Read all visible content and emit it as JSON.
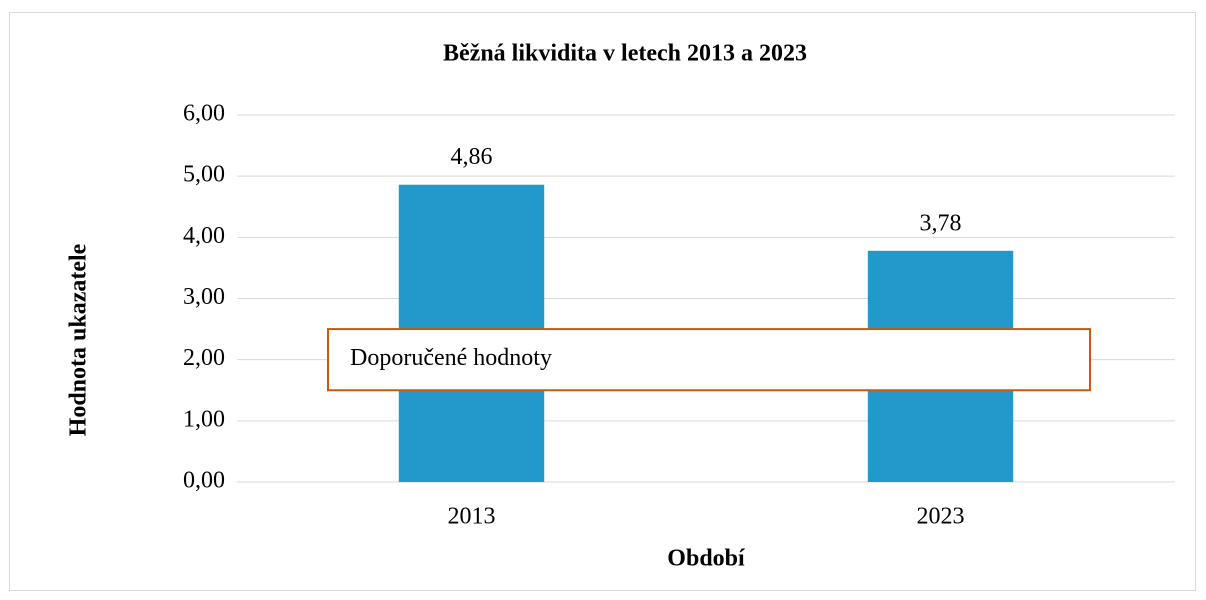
{
  "chart_data": {
    "type": "bar",
    "title": "Běžná likvidita v letech 2013 a 2023",
    "x_label": "Období",
    "y_label": "Hodnota ukazatele",
    "categories": [
      "2013",
      "2023"
    ],
    "values": [
      4.86,
      3.78
    ],
    "value_labels": [
      "4,86",
      "3,78"
    ],
    "color": "#2399cb",
    "ylim": [
      0,
      6
    ],
    "yticks": [
      {
        "value": 0,
        "label": "0,00"
      },
      {
        "value": 1,
        "label": "1,00"
      },
      {
        "value": 2,
        "label": "2,00"
      },
      {
        "value": 3,
        "label": "3,00"
      },
      {
        "value": 4,
        "label": "4,00"
      },
      {
        "value": 5,
        "label": "5,00"
      },
      {
        "value": 6,
        "label": "6,00"
      }
    ],
    "grid": true,
    "annotation": {
      "text": "Doporučené hodnoty",
      "range": [
        1.5,
        2.5
      ],
      "color": "#c55a11"
    }
  }
}
